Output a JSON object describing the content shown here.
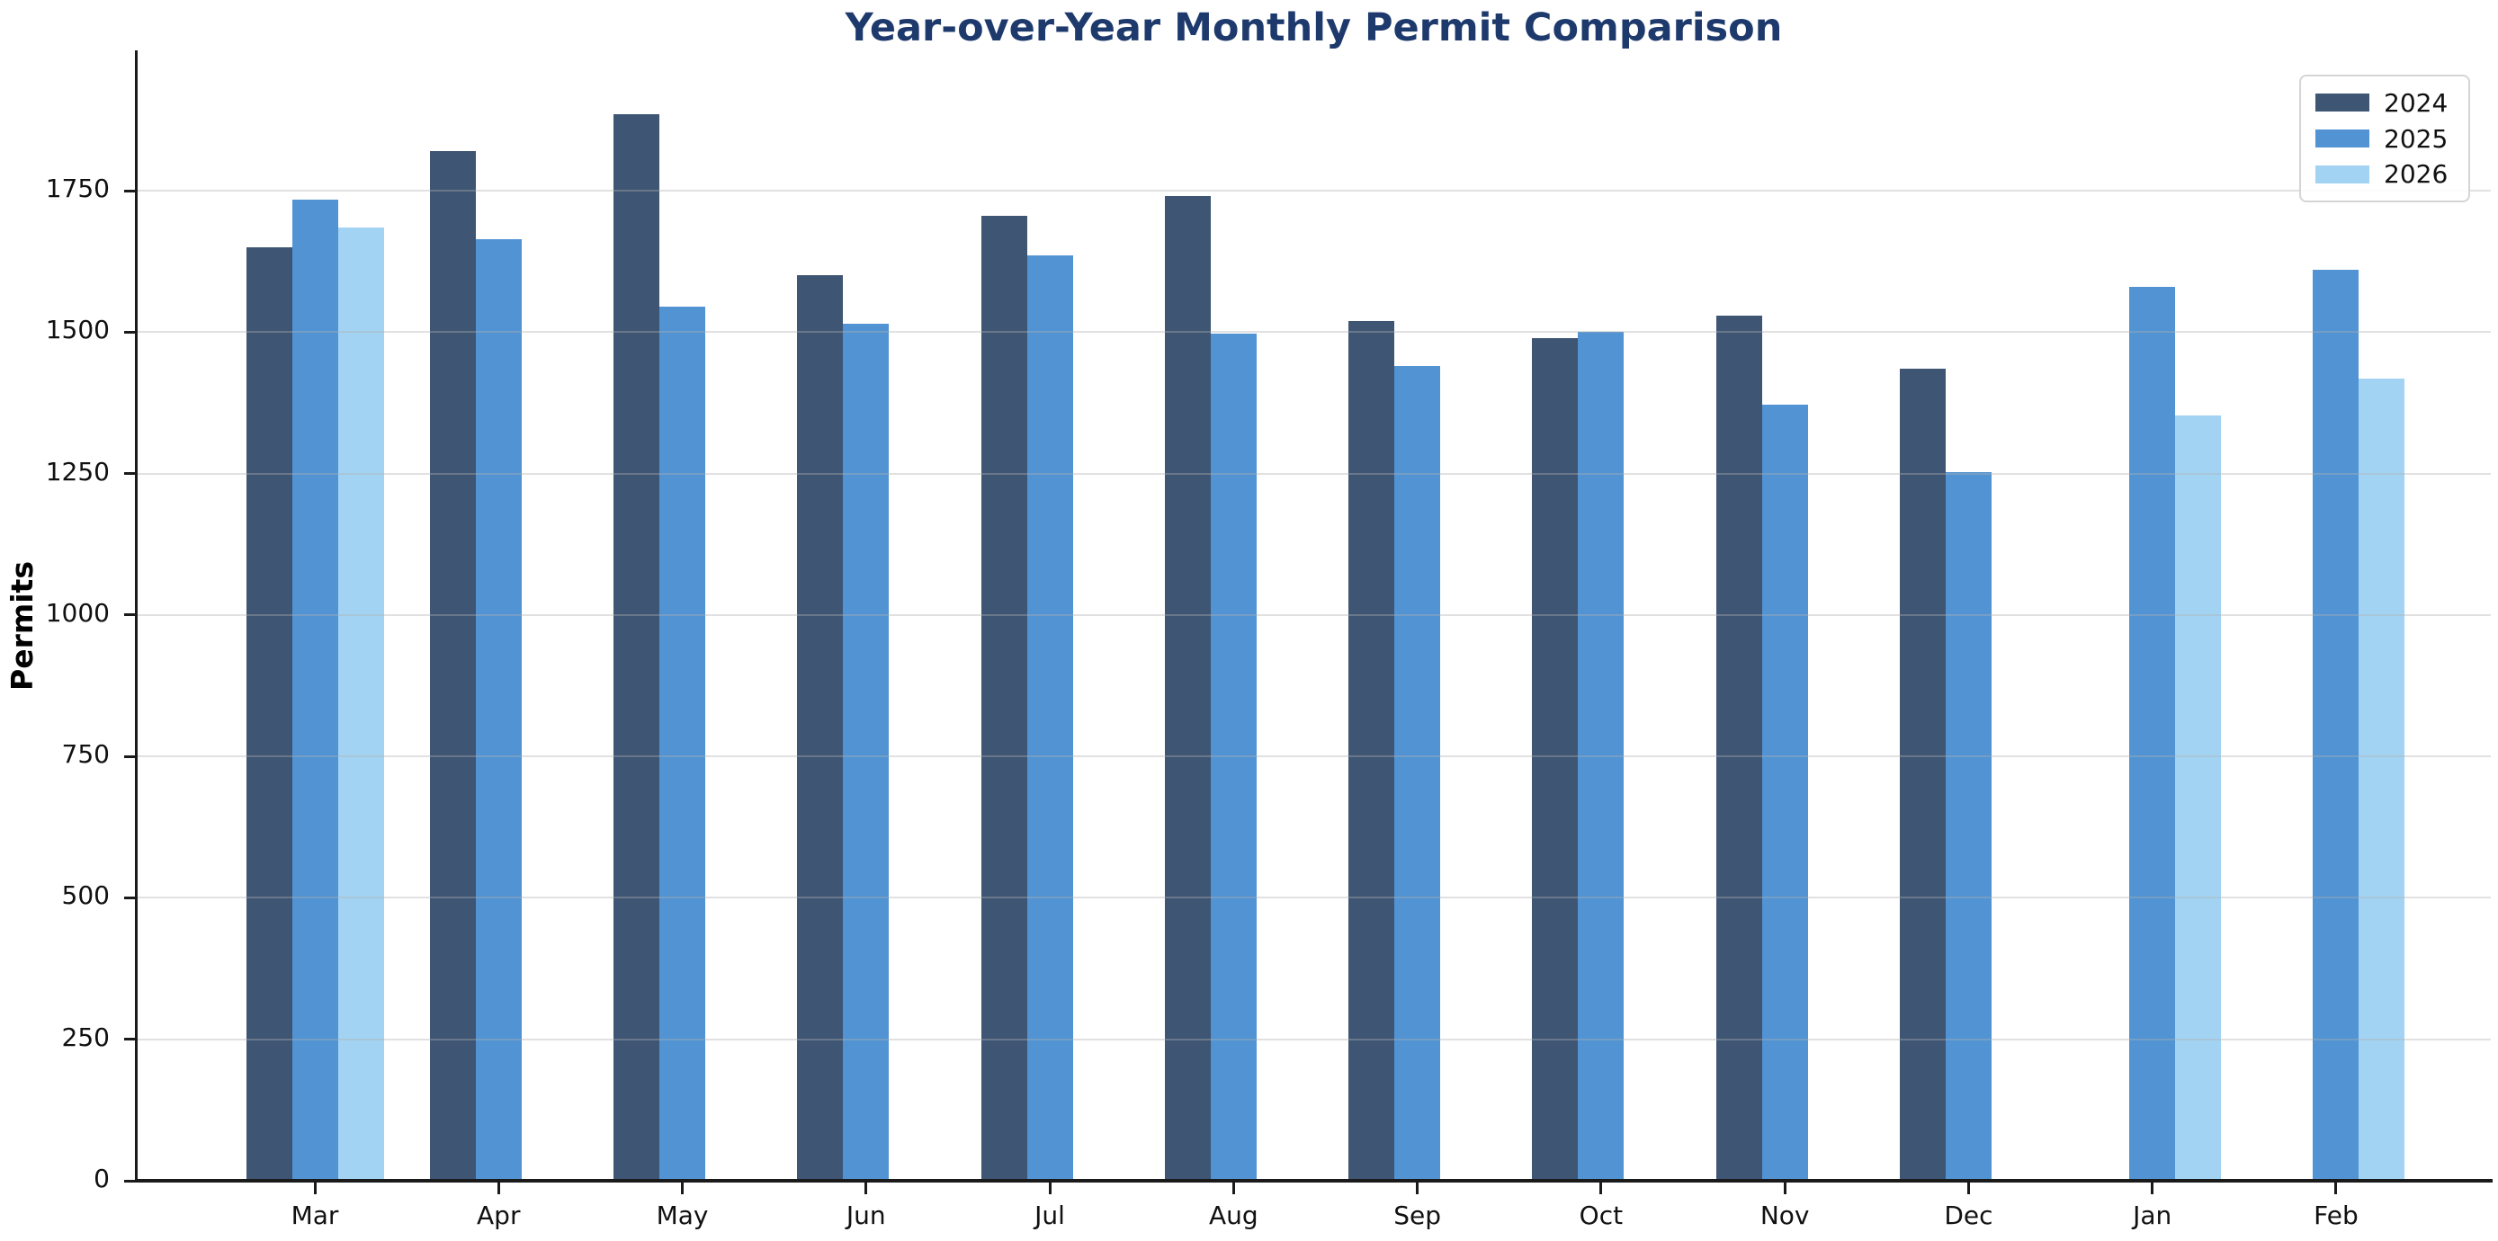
{
  "title": "Year-over-Year Monthly Permit Comparison",
  "title_color": "#1e3a6d",
  "chart_data": {
    "type": "bar",
    "categories": [
      "Mar",
      "Apr",
      "May",
      "Jun",
      "Jul",
      "Aug",
      "Sep",
      "Oct",
      "Nov",
      "Dec",
      "Jan",
      "Feb"
    ],
    "series": [
      {
        "name": "2024",
        "color": "#3E5573",
        "values": [
          1650,
          1820,
          1885,
          1600,
          1705,
          1740,
          1520,
          1490,
          1530,
          1435,
          null,
          null
        ]
      },
      {
        "name": "2025",
        "color": "#5193D3",
        "values": [
          1735,
          1665,
          1545,
          1515,
          1635,
          1497,
          1440,
          1500,
          1372,
          1253,
          1580,
          1610
        ]
      },
      {
        "name": "2026",
        "color": "#A3D3F2",
        "values": [
          1685,
          null,
          null,
          null,
          null,
          null,
          null,
          null,
          null,
          null,
          1353,
          1418
        ]
      }
    ],
    "title": "Year-over-Year Monthly Permit Comparison",
    "xlabel": "",
    "ylabel": "Permits",
    "yticks": [
      0,
      250,
      500,
      750,
      1000,
      1250,
      1500,
      1750
    ],
    "ylim": [
      0,
      1995
    ],
    "grid": true,
    "legend_position": "upper right"
  }
}
